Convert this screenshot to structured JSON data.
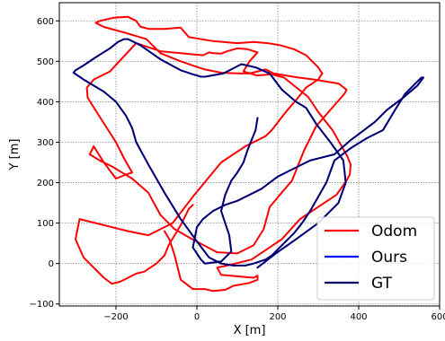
{
  "chart_data": {
    "type": "line",
    "title": "",
    "xlabel": "X [m]",
    "ylabel": "Y [m]",
    "xlim": [
      -340,
      600
    ],
    "ylim": [
      -105,
      645
    ],
    "xticks": [
      -200,
      0,
      200,
      400,
      600
    ],
    "yticks": [
      -100,
      0,
      100,
      200,
      300,
      400,
      500,
      600
    ],
    "xtick_labels": [
      "−200",
      "0",
      "200",
      "400",
      "600"
    ],
    "ytick_labels": [
      "−100",
      "0",
      "100",
      "200",
      "300",
      "400",
      "500",
      "600"
    ],
    "grid": true,
    "legend_position": "bottom-right",
    "series": [
      {
        "name": "Odom",
        "color": "#ff0000",
        "x": [
          -80,
          -68,
          -55,
          -40,
          -10,
          10,
          20,
          40,
          70,
          90,
          130,
          150,
          150,
          140,
          60,
          50,
          75,
          135,
          165,
          210,
          255,
          300,
          345,
          370,
          378,
          380,
          372,
          335,
          300,
          275,
          215,
          195,
          185,
          148,
          115,
          130,
          150,
          125,
          100,
          75,
          60,
          40,
          30,
          15,
          -90,
          -150,
          -215,
          -255,
          -272,
          -270,
          -245,
          -200,
          -180,
          -160,
          -175,
          -200,
          -230,
          -255,
          -265,
          -240,
          -210,
          -185,
          -160,
          -120,
          -90,
          -55,
          -15,
          50,
          100,
          140,
          165,
          180,
          205,
          235,
          265,
          295,
          330,
          365,
          370,
          350,
          290,
          250,
          190,
          170,
          150,
          130,
          110,
          60,
          20,
          -5,
          -40,
          -90,
          -110,
          -125,
          -175,
          -230,
          -250,
          -240,
          -205,
          -170,
          -150,
          -140,
          -118,
          -80,
          -45,
          -40,
          -20,
          40,
          100,
          140,
          175,
          205,
          240,
          270,
          300,
          310,
          300,
          270,
          250,
          220,
          185,
          170,
          120,
          60,
          -10,
          -60,
          -120,
          -170,
          -250,
          -290,
          -300,
          -280,
          -230,
          -210,
          -190,
          -170,
          -150,
          -130,
          -100,
          -80,
          -70,
          -55,
          -40,
          -30,
          -20,
          -10
        ],
        "y": [
          80,
          60,
          20,
          -40,
          -63,
          -63,
          -63,
          -68,
          -65,
          -55,
          -48,
          -40,
          -30,
          -35,
          -28,
          -10,
          -5,
          10,
          30,
          60,
          110,
          140,
          170,
          205,
          220,
          245,
          265,
          330,
          375,
          412,
          460,
          465,
          468,
          465,
          475,
          500,
          522,
          530,
          532,
          525,
          519,
          520,
          522,
          515,
          525,
          545,
          475,
          455,
          435,
          410,
          370,
          300,
          260,
          225,
          220,
          210,
          250,
          290,
          270,
          255,
          240,
          225,
          210,
          175,
          120,
          85,
          62,
          28,
          25,
          45,
          85,
          140,
          170,
          205,
          280,
          340,
          380,
          420,
          430,
          445,
          455,
          460,
          470,
          480,
          475,
          470,
          470,
          472,
          480,
          488,
          500,
          520,
          540,
          555,
          570,
          585,
          595,
          600,
          608,
          610,
          600,
          586,
          580,
          580,
          583,
          583,
          560,
          550,
          545,
          548,
          545,
          540,
          530,
          515,
          485,
          470,
          455,
          435,
          410,
          375,
          330,
          315,
          290,
          250,
          165,
          100,
          70,
          80,
          100,
          110,
          60,
          15,
          -35,
          -50,
          -45,
          -35,
          -25,
          -20,
          0,
          20,
          45,
          70,
          95,
          115,
          135,
          145
        ]
      },
      {
        "name": "Ours",
        "color": "#0000ff",
        "x": [
          150,
          195,
          245,
          300,
          350,
          368,
          362,
          330,
          295,
          270,
          245,
          210,
          180,
          145,
          110,
          65,
          20,
          10,
          0,
          -10,
          -40,
          -90,
          -140,
          -170,
          -180,
          -195,
          -215,
          -250,
          -280,
          -300,
          -305,
          -280,
          -230,
          -200,
          -175,
          -160,
          -150,
          -120,
          -80,
          -40,
          0,
          30,
          60,
          90,
          120,
          140,
          170,
          185,
          200,
          220,
          240,
          260,
          280,
          300,
          320,
          340,
          380,
          420,
          460,
          490,
          515,
          540,
          555,
          560,
          545,
          510,
          470,
          440,
          420,
          400,
          380,
          340,
          280,
          250,
          230,
          200,
          180,
          160,
          130,
          100,
          70,
          40,
          15,
          0,
          -5,
          -10,
          10,
          20,
          60,
          85,
          80,
          60,
          70,
          85,
          100,
          115,
          125,
          135,
          145,
          150
        ],
        "y": [
          -10,
          25,
          60,
          100,
          150,
          200,
          255,
          300,
          345,
          385,
          400,
          430,
          470,
          485,
          493,
          470,
          462,
          462,
          465,
          468,
          478,
          505,
          540,
          555,
          555,
          548,
          532,
          510,
          490,
          478,
          472,
          455,
          425,
          400,
          365,
          335,
          300,
          245,
          175,
          110,
          55,
          15,
          0,
          -5,
          -5,
          0,
          10,
          20,
          35,
          55,
          75,
          100,
          130,
          165,
          200,
          255,
          285,
          310,
          330,
          380,
          420,
          445,
          460,
          460,
          440,
          410,
          380,
          350,
          335,
          320,
          305,
          270,
          255,
          240,
          230,
          215,
          200,
          185,
          170,
          155,
          145,
          130,
          110,
          90,
          65,
          40,
          10,
          0,
          5,
          30,
          70,
          130,
          170,
          205,
          225,
          250,
          280,
          305,
          330,
          360
        ]
      },
      {
        "name": "GT",
        "color": "#000066",
        "x": [
          150,
          195,
          245,
          300,
          350,
          368,
          362,
          330,
          295,
          270,
          245,
          210,
          180,
          145,
          110,
          65,
          20,
          10,
          0,
          -10,
          -40,
          -90,
          -140,
          -170,
          -180,
          -195,
          -215,
          -250,
          -280,
          -300,
          -305,
          -280,
          -230,
          -200,
          -175,
          -160,
          -150,
          -120,
          -80,
          -40,
          0,
          30,
          60,
          90,
          120,
          140,
          170,
          185,
          200,
          220,
          240,
          260,
          280,
          300,
          320,
          340,
          380,
          420,
          460,
          490,
          515,
          540,
          555,
          560,
          545,
          510,
          470,
          440,
          420,
          400,
          380,
          340,
          280,
          250,
          230,
          200,
          180,
          160,
          130,
          100,
          70,
          40,
          15,
          0,
          -5,
          -10,
          10,
          20,
          60,
          85,
          80,
          60,
          70,
          85,
          100,
          115,
          125,
          135,
          145,
          150
        ],
        "y": [
          -10,
          25,
          60,
          100,
          150,
          200,
          255,
          300,
          345,
          385,
          400,
          430,
          470,
          485,
          493,
          470,
          462,
          462,
          465,
          468,
          478,
          505,
          540,
          555,
          555,
          548,
          532,
          510,
          490,
          478,
          472,
          455,
          425,
          400,
          365,
          335,
          300,
          245,
          175,
          110,
          55,
          15,
          0,
          -5,
          -5,
          0,
          10,
          20,
          35,
          55,
          75,
          100,
          130,
          165,
          200,
          255,
          285,
          310,
          330,
          380,
          420,
          445,
          460,
          460,
          440,
          410,
          380,
          350,
          335,
          320,
          305,
          270,
          255,
          240,
          230,
          215,
          200,
          185,
          170,
          155,
          145,
          130,
          110,
          90,
          65,
          40,
          10,
          0,
          5,
          30,
          70,
          130,
          170,
          205,
          225,
          250,
          280,
          305,
          330,
          360
        ]
      }
    ]
  }
}
